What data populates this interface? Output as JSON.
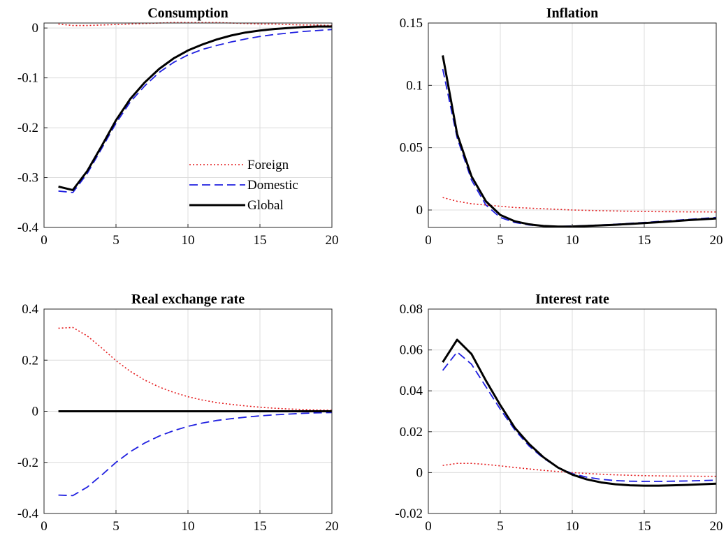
{
  "colors": {
    "foreign": "#e41a1c",
    "domestic": "#1f1fe0",
    "global": "#000000"
  },
  "legend": [
    {
      "key": "foreign",
      "label": "Foreign",
      "style": "dotted"
    },
    {
      "key": "domestic",
      "label": "Domestic",
      "style": "dashed"
    },
    {
      "key": "global",
      "label": "Global",
      "style": "solid"
    }
  ],
  "chart_data": [
    {
      "type": "line",
      "title": "Consumption",
      "xlim": [
        0,
        20
      ],
      "ylim": [
        -0.4,
        0.01
      ],
      "xticks": [
        0,
        5,
        10,
        15,
        20
      ],
      "xtick_labels": [
        "0",
        "5",
        "10",
        "15",
        "20"
      ],
      "yticks": [
        -0.4,
        -0.3,
        -0.2,
        -0.1,
        0
      ],
      "ytick_labels": [
        "-0.4",
        "-0.3",
        "-0.2",
        "-0.1",
        "0"
      ],
      "grid": true,
      "legend_position": "lower-right",
      "x": [
        1,
        2,
        3,
        4,
        5,
        6,
        7,
        8,
        9,
        10,
        11,
        12,
        13,
        14,
        15,
        16,
        17,
        18,
        19,
        20
      ],
      "series": [
        {
          "key": "foreign",
          "values": [
            0.008,
            0.005,
            0.005,
            0.006,
            0.007,
            0.008,
            0.009,
            0.01,
            0.011,
            0.011,
            0.011,
            0.011,
            0.01,
            0.009,
            0.008,
            0.008,
            0.007,
            0.006,
            0.006,
            0.005
          ]
        },
        {
          "key": "domestic",
          "values": [
            -0.327,
            -0.33,
            -0.292,
            -0.242,
            -0.191,
            -0.148,
            -0.116,
            -0.089,
            -0.069,
            -0.054,
            -0.043,
            -0.035,
            -0.028,
            -0.022,
            -0.017,
            -0.013,
            -0.01,
            -0.007,
            -0.005,
            -0.003
          ]
        },
        {
          "key": "global",
          "values": [
            -0.318,
            -0.325,
            -0.287,
            -0.237,
            -0.185,
            -0.142,
            -0.109,
            -0.082,
            -0.061,
            -0.045,
            -0.033,
            -0.023,
            -0.015,
            -0.009,
            -0.005,
            -0.002,
            0,
            0.002,
            0.003,
            0.003
          ]
        }
      ]
    },
    {
      "type": "line",
      "title": "Inflation",
      "xlim": [
        0,
        20
      ],
      "ylim": [
        -0.014,
        0.15
      ],
      "xticks": [
        0,
        5,
        10,
        15,
        20
      ],
      "xtick_labels": [
        "0",
        "5",
        "10",
        "15",
        "20"
      ],
      "yticks": [
        0,
        0.05,
        0.1,
        0.15
      ],
      "ytick_labels": [
        "0",
        "0.05",
        "0.1",
        "0.15"
      ],
      "grid": true,
      "x": [
        1,
        2,
        3,
        4,
        5,
        6,
        7,
        8,
        9,
        10,
        11,
        12,
        13,
        14,
        15,
        16,
        17,
        18,
        19,
        20
      ],
      "series": [
        {
          "key": "foreign",
          "values": [
            0.01,
            0.007,
            0.005,
            0.004,
            0.003,
            0.002,
            0.0015,
            0.001,
            0.0005,
            0,
            -0.0003,
            -0.0006,
            -0.0008,
            -0.001,
            -0.0012,
            -0.0013,
            -0.0014,
            -0.0015,
            -0.0015,
            -0.0016
          ]
        },
        {
          "key": "domestic",
          "values": [
            0.113,
            0.058,
            0.024,
            0.004,
            -0.006,
            -0.01,
            -0.012,
            -0.013,
            -0.0132,
            -0.0129,
            -0.0125,
            -0.012,
            -0.0114,
            -0.0107,
            -0.01,
            -0.0092,
            -0.0084,
            -0.0076,
            -0.0068,
            -0.006
          ]
        },
        {
          "key": "global",
          "values": [
            0.124,
            0.061,
            0.027,
            0.007,
            -0.004,
            -0.009,
            -0.0115,
            -0.0128,
            -0.0133,
            -0.0132,
            -0.0128,
            -0.0123,
            -0.0118,
            -0.0112,
            -0.0105,
            -0.0098,
            -0.009,
            -0.0082,
            -0.0075,
            -0.0068
          ]
        }
      ]
    },
    {
      "type": "line",
      "title": "Real exchange rate",
      "xlim": [
        0,
        20
      ],
      "ylim": [
        -0.4,
        0.4
      ],
      "xticks": [
        0,
        5,
        10,
        15,
        20
      ],
      "xtick_labels": [
        "0",
        "5",
        "10",
        "15",
        "20"
      ],
      "yticks": [
        -0.4,
        -0.2,
        0,
        0.2,
        0.4
      ],
      "ytick_labels": [
        "-0.4",
        "-0.2",
        "0",
        "0.2",
        "0.4"
      ],
      "grid": true,
      "x": [
        1,
        2,
        3,
        4,
        5,
        6,
        7,
        8,
        9,
        10,
        11,
        12,
        13,
        14,
        15,
        16,
        17,
        18,
        19,
        20
      ],
      "series": [
        {
          "key": "foreign",
          "values": [
            0.325,
            0.328,
            0.295,
            0.248,
            0.198,
            0.156,
            0.122,
            0.095,
            0.074,
            0.057,
            0.044,
            0.034,
            0.027,
            0.021,
            0.016,
            0.012,
            0.009,
            0.007,
            0.005,
            0.004
          ]
        },
        {
          "key": "domestic",
          "values": [
            -0.328,
            -0.33,
            -0.297,
            -0.25,
            -0.2,
            -0.158,
            -0.124,
            -0.097,
            -0.076,
            -0.059,
            -0.046,
            -0.036,
            -0.029,
            -0.023,
            -0.018,
            -0.014,
            -0.011,
            -0.008,
            -0.006,
            -0.005
          ]
        },
        {
          "key": "global",
          "values": [
            0,
            0,
            0,
            0,
            0,
            0,
            0,
            0,
            0,
            0,
            0,
            0,
            0,
            0,
            0,
            0,
            0,
            0,
            0,
            0
          ]
        }
      ]
    },
    {
      "type": "line",
      "title": "Interest rate",
      "xlim": [
        0,
        20
      ],
      "ylim": [
        -0.02,
        0.08
      ],
      "xticks": [
        0,
        5,
        10,
        15,
        20
      ],
      "xtick_labels": [
        "0",
        "5",
        "10",
        "15",
        "20"
      ],
      "yticks": [
        -0.02,
        0,
        0.02,
        0.04,
        0.06,
        0.08
      ],
      "ytick_labels": [
        "-0.02",
        "0",
        "0.02",
        "0.04",
        "0.06",
        "0.08"
      ],
      "grid": true,
      "x": [
        1,
        2,
        3,
        4,
        5,
        6,
        7,
        8,
        9,
        10,
        11,
        12,
        13,
        14,
        15,
        16,
        17,
        18,
        19,
        20
      ],
      "series": [
        {
          "key": "foreign",
          "values": [
            0.0035,
            0.0045,
            0.0045,
            0.004,
            0.0033,
            0.0025,
            0.0018,
            0.0011,
            0.0005,
            0,
            -0.0004,
            -0.0008,
            -0.0011,
            -0.0013,
            -0.0015,
            -0.0016,
            -0.0017,
            -0.0017,
            -0.0018,
            -0.0018
          ]
        },
        {
          "key": "domestic",
          "values": [
            0.05,
            0.059,
            0.053,
            0.042,
            0.031,
            0.021,
            0.013,
            0.007,
            0.0025,
            -0.0005,
            -0.0022,
            -0.0033,
            -0.0039,
            -0.0042,
            -0.0043,
            -0.0043,
            -0.0042,
            -0.0041,
            -0.0039,
            -0.0037
          ]
        },
        {
          "key": "global",
          "values": [
            0.054,
            0.065,
            0.058,
            0.045,
            0.033,
            0.022,
            0.014,
            0.0075,
            0.0025,
            -0.001,
            -0.0033,
            -0.0048,
            -0.0057,
            -0.0062,
            -0.0064,
            -0.0064,
            -0.0062,
            -0.006,
            -0.0057,
            -0.0054
          ]
        }
      ]
    }
  ]
}
